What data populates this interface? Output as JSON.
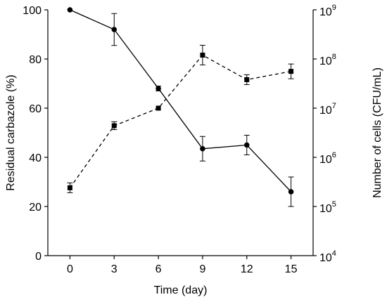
{
  "chart_data": {
    "type": "line",
    "xlabel": "Time (day)",
    "ylabel": "Residual carbazole (%)",
    "y2label": "Number of cells (CFU/mL)",
    "x_ticks": [
      "0",
      "3",
      "6",
      "9",
      "12",
      "15"
    ],
    "y_ticks": [
      "0",
      "20",
      "40",
      "60",
      "80",
      "100"
    ],
    "y2_ticks": [
      {
        "base": "10",
        "exp": "4"
      },
      {
        "base": "10",
        "exp": "5"
      },
      {
        "base": "10",
        "exp": "6"
      },
      {
        "base": "10",
        "exp": "7"
      },
      {
        "base": "10",
        "exp": "8"
      },
      {
        "base": "10",
        "exp": "9"
      }
    ],
    "xlim": [
      -1.5,
      16.5
    ],
    "ylim": [
      0,
      100
    ],
    "y2lim_log10": [
      4,
      9
    ],
    "series": [
      {
        "axis": "left",
        "marker": "circle",
        "line": "solid",
        "x": [
          0,
          3,
          6,
          9,
          12,
          15
        ],
        "y": [
          100,
          92,
          68,
          43.5,
          45,
          26
        ],
        "err": [
          0,
          6.5,
          1,
          5,
          4,
          6
        ]
      },
      {
        "axis": "right",
        "marker": "square",
        "line": "dashed",
        "x": [
          0,
          3,
          6,
          9,
          12,
          15
        ],
        "y": [
          240000,
          4400000,
          10000000,
          120000000,
          38000000,
          56000000
        ],
        "err_log10": [
          0.1,
          0.08,
          0,
          0.2,
          0.1,
          0.15
        ]
      }
    ]
  }
}
